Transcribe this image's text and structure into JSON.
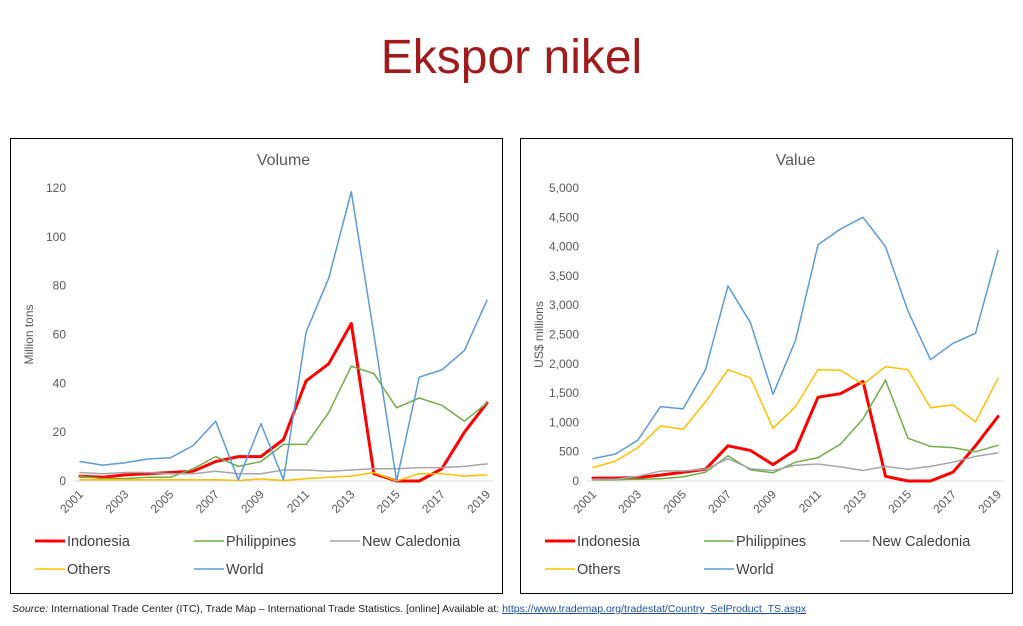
{
  "slide": {
    "title": "Ekspor nikel"
  },
  "source": {
    "label": "Source:",
    "text": "International Trade Center (ITC), Trade Map – International Trade Statistics. [online] Available at:",
    "url": "https://www.trademap.org/tradestat/Country_SelProduct_TS.aspx"
  },
  "chart_data": [
    {
      "type": "line",
      "title": "Volume",
      "xlabel": "",
      "ylabel": "Million tons",
      "x": [
        2001,
        2002,
        2003,
        2004,
        2005,
        2006,
        2007,
        2008,
        2009,
        2010,
        2011,
        2012,
        2013,
        2014,
        2015,
        2016,
        2017,
        2018,
        2019
      ],
      "x_tick_labels": [
        "2001",
        "2003",
        "2005",
        "2007",
        "2009",
        "2011",
        "2013",
        "2015",
        "2017",
        "2019"
      ],
      "ylim": [
        0,
        120
      ],
      "y_ticks": [
        0,
        20,
        40,
        60,
        80,
        100,
        120
      ],
      "y_tick_labels": [
        "0",
        "20",
        "40",
        "60",
        "80",
        "100",
        "120"
      ],
      "series": [
        {
          "name": "Indonesia",
          "color": "#ff0000",
          "width": 3,
          "values": [
            2,
            1.5,
            2.5,
            3,
            3.5,
            4,
            8,
            10,
            10,
            17,
            41,
            48,
            64.5,
            3,
            0,
            0,
            5,
            20,
            32
          ]
        },
        {
          "name": "Philippines",
          "color": "#70ad47",
          "width": 1.5,
          "values": [
            2,
            1,
            1,
            1.5,
            1.5,
            5,
            10,
            6,
            8,
            15,
            15,
            28,
            47,
            44,
            30,
            34,
            31,
            24.5,
            32
          ]
        },
        {
          "name": "New Caledonia",
          "color": "#a5a5a5",
          "width": 1.5,
          "values": [
            3.5,
            3,
            3.5,
            3.5,
            3,
            3,
            4,
            3,
            3,
            4.5,
            4.5,
            4,
            4.5,
            5,
            5,
            5.5,
            5.5,
            6,
            7
          ]
        },
        {
          "name": "Others",
          "color": "#ffc000",
          "width": 1.5,
          "values": [
            0.5,
            0.5,
            0.5,
            0.5,
            0.5,
            0.5,
            0.5,
            0.2,
            0.8,
            0.2,
            1,
            1.5,
            2,
            3.5,
            0,
            3,
            3,
            2,
            2.5
          ]
        },
        {
          "name": "World",
          "color": "#5b9bd5",
          "width": 1.5,
          "values": [
            8,
            6.5,
            7.5,
            9,
            9.5,
            14.5,
            24.5,
            0.5,
            23.5,
            0.5,
            61,
            83,
            118.5,
            60,
            0,
            42.5,
            45.5,
            53.5,
            74
          ]
        }
      ],
      "legend": [
        "Indonesia",
        "Philippines",
        "New Caledonia",
        "Others",
        "World"
      ],
      "legend_position": "bottom"
    },
    {
      "type": "line",
      "title": "Value",
      "xlabel": "",
      "ylabel": "US$ millions",
      "x": [
        2001,
        2002,
        2003,
        2004,
        2005,
        2006,
        2007,
        2008,
        2009,
        2010,
        2011,
        2012,
        2013,
        2014,
        2015,
        2016,
        2017,
        2018,
        2019
      ],
      "x_tick_labels": [
        "2001",
        "2003",
        "2005",
        "2007",
        "2009",
        "2011",
        "2013",
        "2015",
        "2017",
        "2019"
      ],
      "ylim": [
        0,
        5000
      ],
      "y_ticks": [
        0,
        500,
        1000,
        1500,
        2000,
        2500,
        3000,
        3500,
        4000,
        4500,
        5000
      ],
      "y_tick_labels": [
        "0",
        "500",
        "1,000",
        "1,500",
        "2,000",
        "2,500",
        "3,000",
        "3,500",
        "4,000",
        "4,500",
        "5,000"
      ],
      "series": [
        {
          "name": "Indonesia",
          "color": "#ff0000",
          "width": 3,
          "values": [
            50,
            50,
            60,
            100,
            150,
            200,
            600,
            520,
            280,
            530,
            1430,
            1490,
            1700,
            80,
            0,
            0,
            150,
            600,
            1100
          ]
        },
        {
          "name": "Philippines",
          "color": "#70ad47",
          "width": 1.5,
          "values": [
            20,
            20,
            30,
            40,
            70,
            150,
            430,
            190,
            140,
            320,
            400,
            630,
            1060,
            1720,
            730,
            590,
            570,
            500,
            610
          ]
        },
        {
          "name": "New Caledonia",
          "color": "#a5a5a5",
          "width": 1.5,
          "values": [
            30,
            30,
            80,
            170,
            170,
            200,
            380,
            210,
            180,
            270,
            290,
            240,
            180,
            250,
            200,
            250,
            320,
            420,
            480
          ]
        },
        {
          "name": "Others",
          "color": "#ffc000",
          "width": 1.5,
          "values": [
            230,
            340,
            570,
            940,
            880,
            1350,
            1900,
            1760,
            900,
            1270,
            1900,
            1890,
            1650,
            1950,
            1900,
            1250,
            1300,
            1010,
            1750
          ]
        },
        {
          "name": "World",
          "color": "#5b9bd5",
          "width": 1.5,
          "values": [
            380,
            460,
            700,
            1270,
            1230,
            1900,
            3330,
            2700,
            1480,
            2400,
            4030,
            4300,
            4500,
            4000,
            2900,
            2070,
            2350,
            2520,
            3930
          ]
        }
      ],
      "legend": [
        "Indonesia",
        "Philippines",
        "New Caledonia",
        "Others",
        "World"
      ],
      "legend_position": "bottom"
    }
  ]
}
